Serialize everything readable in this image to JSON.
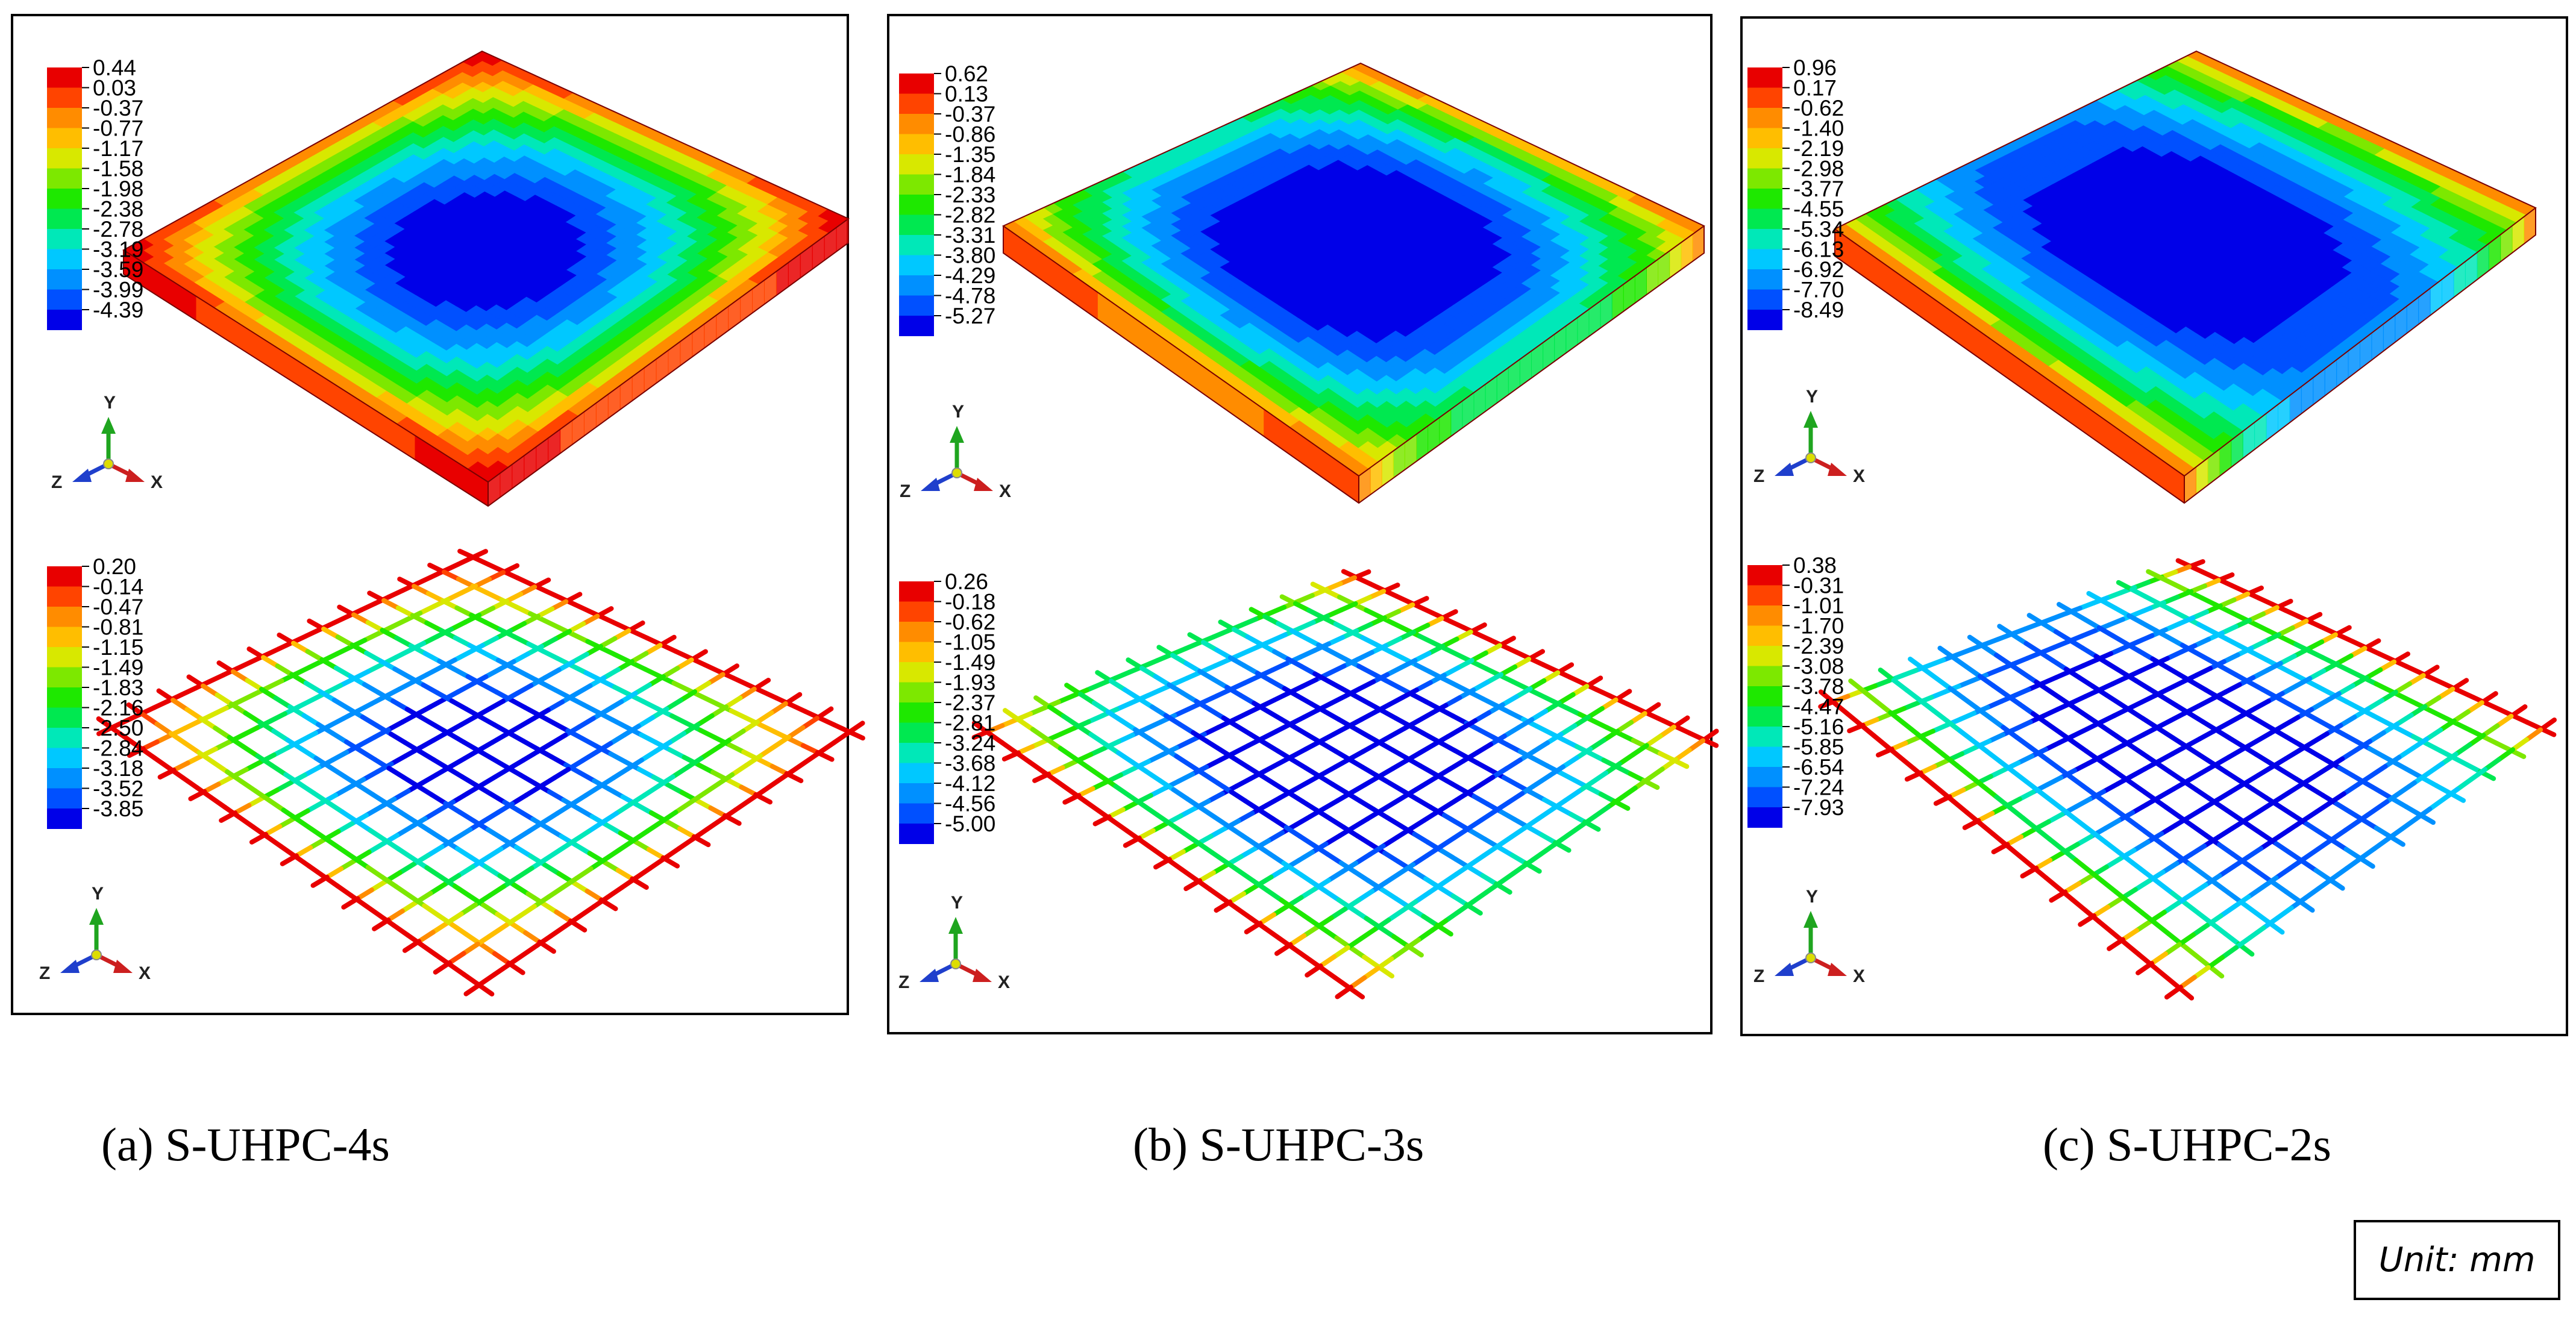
{
  "figure": {
    "unit_label": "Unit: mm",
    "axis_labels": {
      "x": "X",
      "y": "Y",
      "z": "Z"
    },
    "colors": {
      "contour_scale": [
        "#e80000",
        "#ff4400",
        "#ff8c00",
        "#ffbe00",
        "#d8e800",
        "#7de800",
        "#1ee800",
        "#00e850",
        "#00e8b8",
        "#00c8ff",
        "#0090ff",
        "#0050ff",
        "#0000e8"
      ],
      "triad_x": "#cc1f1f",
      "triad_y": "#1fa51f",
      "triad_z": "#1f3fcc"
    },
    "panels": [
      {
        "id": "a",
        "caption": "(a) S-UHPC-4s",
        "slab_pattern": "central-dish",
        "slab_legend": [
          "0.44",
          "0.03",
          "-0.37",
          "-0.77",
          "-1.17",
          "-1.58",
          "-1.98",
          "-2.38",
          "-2.78",
          "-3.19",
          "-3.59",
          "-3.99",
          "-4.39"
        ],
        "rebar_legend": [
          "0.20",
          "-0.14",
          "-0.47",
          "-0.81",
          "-1.15",
          "-1.49",
          "-1.83",
          "-2.16",
          "-2.50",
          "-2.84",
          "-3.18",
          "-3.52",
          "-3.85"
        ]
      },
      {
        "id": "b",
        "caption": "(b) S-UHPC-3s",
        "slab_pattern": "central-trough",
        "slab_legend": [
          "0.62",
          "0.13",
          "-0.37",
          "-0.86",
          "-1.35",
          "-1.84",
          "-2.33",
          "-2.82",
          "-3.31",
          "-3.80",
          "-4.29",
          "-4.78",
          "-5.27"
        ],
        "rebar_legend": [
          "0.26",
          "-0.18",
          "-0.62",
          "-1.05",
          "-1.49",
          "-1.93",
          "-2.37",
          "-2.81",
          "-3.24",
          "-3.68",
          "-4.12",
          "-4.56",
          "-5.00"
        ]
      },
      {
        "id": "c",
        "caption": "(c) S-UHPC-2s",
        "slab_pattern": "one-way",
        "slab_legend": [
          "0.96",
          "0.17",
          "-0.62",
          "-1.40",
          "-2.19",
          "-2.98",
          "-3.77",
          "-4.55",
          "-5.34",
          "-6.13",
          "-6.92",
          "-7.70",
          "-8.49"
        ],
        "rebar_legend": [
          "0.38",
          "-0.31",
          "-1.01",
          "-1.70",
          "-2.39",
          "-3.08",
          "-3.78",
          "-4.47",
          "-5.16",
          "-5.85",
          "-6.54",
          "-7.24",
          "-7.93"
        ]
      }
    ]
  }
}
